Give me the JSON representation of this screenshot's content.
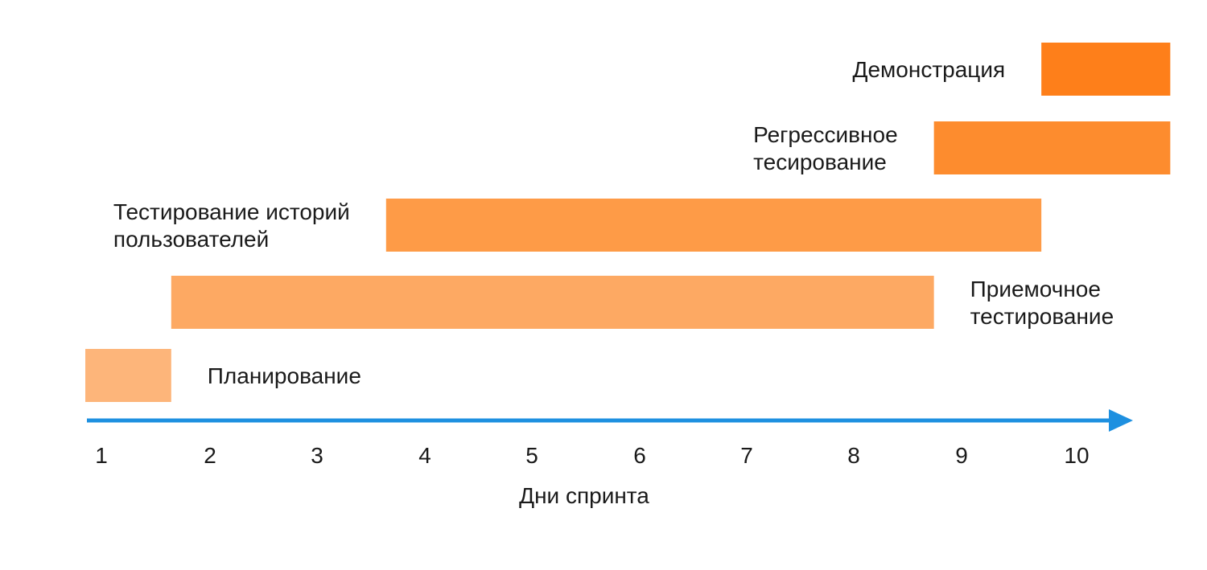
{
  "chart_data": {
    "type": "gantt",
    "xlabel": "Дни спринта",
    "x_ticks": [
      "1",
      "2",
      "3",
      "4",
      "5",
      "6",
      "7",
      "8",
      "9",
      "10"
    ],
    "xlim": [
      0.6,
      10.6
    ],
    "axis_color": "#1e90e0",
    "tasks": [
      {
        "name": "Планирование",
        "label_lines": [
          "Планирование"
        ],
        "start": 0.6,
        "end": 1.4,
        "color": "#fdb57a",
        "label_side": "right"
      },
      {
        "name": "Приемочное тестирование",
        "label_lines": [
          "Приемочное",
          "тестирование"
        ],
        "start": 1.4,
        "end": 8.5,
        "color": "#fda963",
        "label_side": "right"
      },
      {
        "name": "Тестирование историй пользователей",
        "label_lines": [
          "Тестирование историй",
          "пользователей"
        ],
        "start": 3.4,
        "end": 9.5,
        "color": "#fe9b47",
        "label_side": "left"
      },
      {
        "name": "Регрессивное тесирование",
        "label_lines": [
          "Регрессивное",
          "тесирование"
        ],
        "start": 8.5,
        "end": 10.7,
        "color": "#fd8c2e",
        "label_side": "left"
      },
      {
        "name": "Демонстрация",
        "label_lines": [
          "Демонстрация"
        ],
        "start": 9.5,
        "end": 10.7,
        "color": "#fe7f1a",
        "label_side": "left"
      }
    ]
  }
}
